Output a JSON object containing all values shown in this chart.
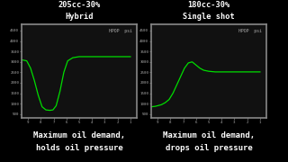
{
  "bg_color": "#000000",
  "panel_bg": "#111111",
  "panel_edge_outer": "#888888",
  "panel_edge_inner": "#444444",
  "line_color": "#00dd00",
  "text_color": "#ffffff",
  "label_color": "#aaaaaa",
  "title1_line1": "205cc-30%",
  "title1_line2": "Hybrid",
  "title2_line1": "180cc-30%",
  "title2_line2": "Single shot",
  "caption1_line1": "Maximum oil demand,",
  "caption1_line2": "holds oil pressure",
  "caption2_line1": "Maximum oil demand,",
  "caption2_line2": "drops oil pressure",
  "hpop_label": "HPOP  psi",
  "yticks": [
    500,
    1000,
    1500,
    2000,
    2500,
    3000,
    3500,
    4000,
    4500
  ],
  "xticks": [
    9,
    8,
    7,
    6,
    5,
    4,
    3,
    2,
    1
  ],
  "ylim": [
    300,
    4800
  ],
  "xlim": [
    9.5,
    0.5
  ],
  "chart1_x": [
    9.5,
    9.1,
    8.8,
    8.5,
    8.2,
    7.9,
    7.6,
    7.3,
    7.05,
    6.8,
    6.5,
    6.2,
    5.9,
    5.5,
    5.0,
    4.5,
    4.0,
    3.5,
    3.0,
    2.5,
    2.0,
    1.5,
    1.0
  ],
  "chart1_y": [
    3100,
    3050,
    2700,
    2100,
    1400,
    850,
    700,
    680,
    700,
    900,
    1600,
    2500,
    3050,
    3200,
    3250,
    3250,
    3250,
    3250,
    3250,
    3250,
    3250,
    3250,
    3250
  ],
  "chart2_x": [
    9.5,
    9.2,
    9.0,
    8.7,
    8.4,
    8.1,
    7.8,
    7.5,
    7.2,
    6.9,
    6.6,
    6.3,
    6.0,
    5.7,
    5.4,
    5.0,
    4.5,
    4.0,
    3.5,
    3.0,
    2.5,
    2.0,
    1.5,
    1.0
  ],
  "chart2_y": [
    850,
    870,
    900,
    950,
    1050,
    1200,
    1500,
    1900,
    2300,
    2700,
    2950,
    3000,
    2850,
    2700,
    2600,
    2550,
    2520,
    2520,
    2520,
    2520,
    2520,
    2520,
    2520,
    2520
  ]
}
